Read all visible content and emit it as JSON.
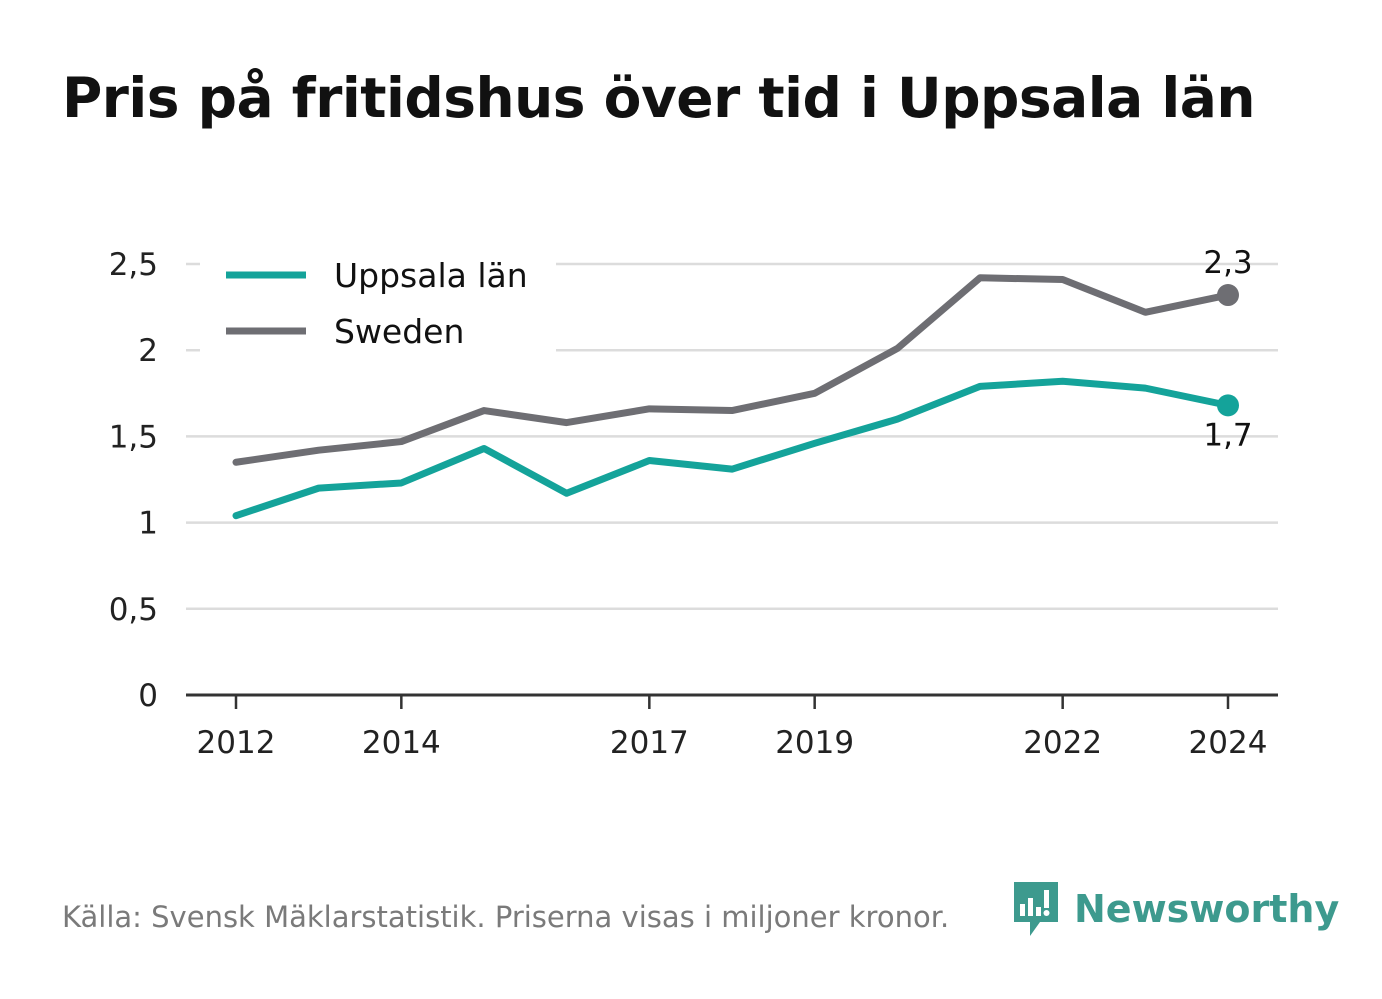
{
  "title": "Pris på fritidshus över tid i Uppsala län",
  "footer": {
    "source": "Källa: Svensk Mäklarstatistik. Priserna visas i miljoner kronor.",
    "brand": "Newsworthy"
  },
  "colors": {
    "uppsala": "#14a39a",
    "sweden": "#6e6e73",
    "grid": "#dcdcdc",
    "axis": "#333333",
    "brand": "#3d9a8e"
  },
  "chart_data": {
    "type": "line",
    "title": "Pris på fritidshus över tid i Uppsala län",
    "xlabel": "",
    "ylabel": "",
    "x": [
      2012,
      2013,
      2014,
      2015,
      2016,
      2017,
      2018,
      2019,
      2020,
      2021,
      2022,
      2023,
      2024
    ],
    "xticks": [
      "2012",
      "2014",
      "2017",
      "2019",
      "2022",
      "2024"
    ],
    "xtick_values": [
      2012,
      2014,
      2017,
      2019,
      2022,
      2024
    ],
    "ylim": [
      0,
      2.5
    ],
    "yticks": [
      "0",
      "0,5",
      "1",
      "1,5",
      "2",
      "2,5"
    ],
    "ytick_values": [
      0,
      0.5,
      1,
      1.5,
      2,
      2.5
    ],
    "grid": true,
    "legend_position": "top-left",
    "series": [
      {
        "name": "Uppsala län",
        "color": "#14a39a",
        "values": [
          1.04,
          1.2,
          1.23,
          1.43,
          1.17,
          1.36,
          1.31,
          1.46,
          1.6,
          1.79,
          1.82,
          1.78,
          1.68
        ],
        "end_label": "1,7"
      },
      {
        "name": "Sweden",
        "color": "#6e6e73",
        "values": [
          1.35,
          1.42,
          1.47,
          1.65,
          1.58,
          1.66,
          1.65,
          1.75,
          2.01,
          2.42,
          2.41,
          2.22,
          2.32
        ],
        "end_label": "2,3"
      }
    ]
  }
}
